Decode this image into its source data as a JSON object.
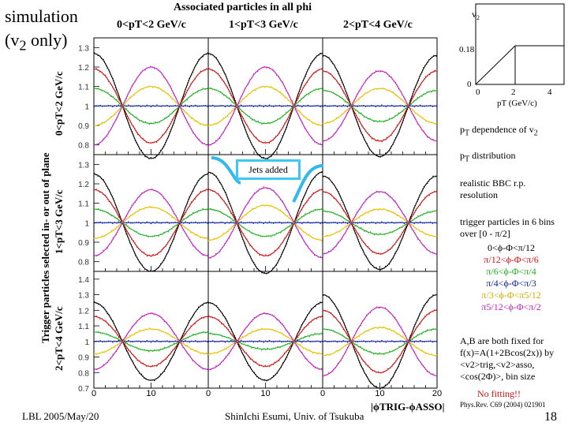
{
  "title_left": [
    "simulation",
    "(v2 only)"
  ],
  "title_top": "Associated particles in all phi",
  "column_labels": [
    "0<pT<2 GeV/c",
    "1<pT<3 GeV/c",
    "2<pT<4 GeV/c"
  ],
  "row_axis_title": "Trigger particles selected in- or out of plane",
  "row_labels": [
    "0<pT<2 GeV/c",
    "1<pT<3 GeV/c",
    "2<pT<4 GeV/c"
  ],
  "jets_label": "Jets added",
  "x_axis_title": "|ϕTRIG-ϕASSO|",
  "x_ticks": [
    "0",
    "10",
    "20"
  ],
  "y_ticks_row1": [
    "1.3",
    "1.2",
    "1.1",
    "1",
    "0.9",
    "0.8"
  ],
  "y_ticks_row2": [
    "1.3",
    "1.2",
    "1.1",
    "1",
    "0.9",
    "0.8"
  ],
  "y_ticks_row3": [
    "1.4",
    "1.3",
    "1.2",
    "1.1",
    "1",
    "0.9",
    "0.8",
    "0.7"
  ],
  "inset": {
    "ylabel": "v2",
    "yticks": [
      "0.18",
      "0"
    ],
    "xticks": [
      "0",
      "2",
      "4"
    ],
    "xlabel": "pT (GeV/c)"
  },
  "side_notes": {
    "pt_dep": "pT dependence of v2",
    "pt_dist": "pT distribution",
    "bbc": "realistic BBC r.p. resolution",
    "trigger": "trigger particles in 6 bins over [0 - π/2]",
    "bins": [
      {
        "label": "0<ϕ-Φ<π/12",
        "color": "#000000"
      },
      {
        "label": "π/12<ϕ-Φ<π/6",
        "color": "#d01010"
      },
      {
        "label": "π/6<ϕ-Φ<π/4",
        "color": "#20b020"
      },
      {
        "label": "π/4<ϕ-Φ<π/3",
        "color": "#1020a0"
      },
      {
        "label": "π/3<ϕ-Φ<π5/12",
        "color": "#e8c000"
      },
      {
        "label": "π5/12<ϕ-Φ<π/2",
        "color": "#c020c0"
      }
    ],
    "fit_note": "A,B are both fixed for f(x)=A(1+2Bcos(2x)) by <v2>trig,<v2>asso, <cos(2Φ)>, bin size",
    "no_fitting": "No fitting!!",
    "ref": "Phys.Rev. C69 (2004) 021901"
  },
  "footer": {
    "left": "LBL 2005/May/20",
    "center": "ShinIchi Esumi, Univ. of Tsukuba",
    "page": "18"
  },
  "chart_data": {
    "type": "line",
    "title": "Associated particles in all phi",
    "xlabel": "|ϕTRIG-ϕASSO|",
    "xlim": [
      0,
      20
    ],
    "ylims": [
      [
        0.75,
        1.35
      ],
      [
        0.75,
        1.35
      ],
      [
        0.7,
        1.45
      ]
    ],
    "function": "1 + amp*cos(2*pi*x/20)",
    "series_names": [
      "0<ϕ-Φ<π/12",
      "π/12<ϕ-Φ<π/6",
      "π/6<ϕ-Φ<π/4",
      "π/4<ϕ-Φ<π/3",
      "π/3<ϕ-Φ<π5/12",
      "π5/12<ϕ-Φ<π/2"
    ],
    "series_colors": [
      "#000000",
      "#d01010",
      "#20b020",
      "#1020a0",
      "#e8c000",
      "#c020c0"
    ],
    "panels": [
      {
        "row": 0,
        "col": 0,
        "amplitudes": [
          0.27,
          0.19,
          0.09,
          0.0,
          -0.1,
          -0.2
        ]
      },
      {
        "row": 0,
        "col": 1,
        "amplitudes": [
          0.27,
          0.19,
          0.09,
          0.0,
          -0.1,
          -0.2
        ]
      },
      {
        "row": 0,
        "col": 2,
        "amplitudes": [
          0.26,
          0.18,
          0.08,
          0.0,
          -0.09,
          -0.18
        ]
      },
      {
        "row": 1,
        "col": 0,
        "amplitudes": [
          0.25,
          0.17,
          0.07,
          0.0,
          -0.08,
          -0.17
        ]
      },
      {
        "row": 1,
        "col": 1,
        "amplitudes": [
          0.26,
          0.17,
          0.07,
          0.0,
          -0.09,
          -0.18
        ]
      },
      {
        "row": 1,
        "col": 2,
        "amplitudes": [
          0.24,
          0.16,
          0.06,
          0.0,
          -0.07,
          -0.16
        ]
      },
      {
        "row": 2,
        "col": 0,
        "amplitudes": [
          0.25,
          0.16,
          0.06,
          0.0,
          -0.08,
          -0.18
        ]
      },
      {
        "row": 2,
        "col": 1,
        "amplitudes": [
          0.25,
          0.16,
          0.05,
          0.0,
          -0.08,
          -0.18
        ]
      },
      {
        "row": 2,
        "col": 2,
        "amplitudes": [
          0.3,
          0.2,
          0.08,
          0.0,
          -0.09,
          -0.22
        ]
      }
    ]
  }
}
